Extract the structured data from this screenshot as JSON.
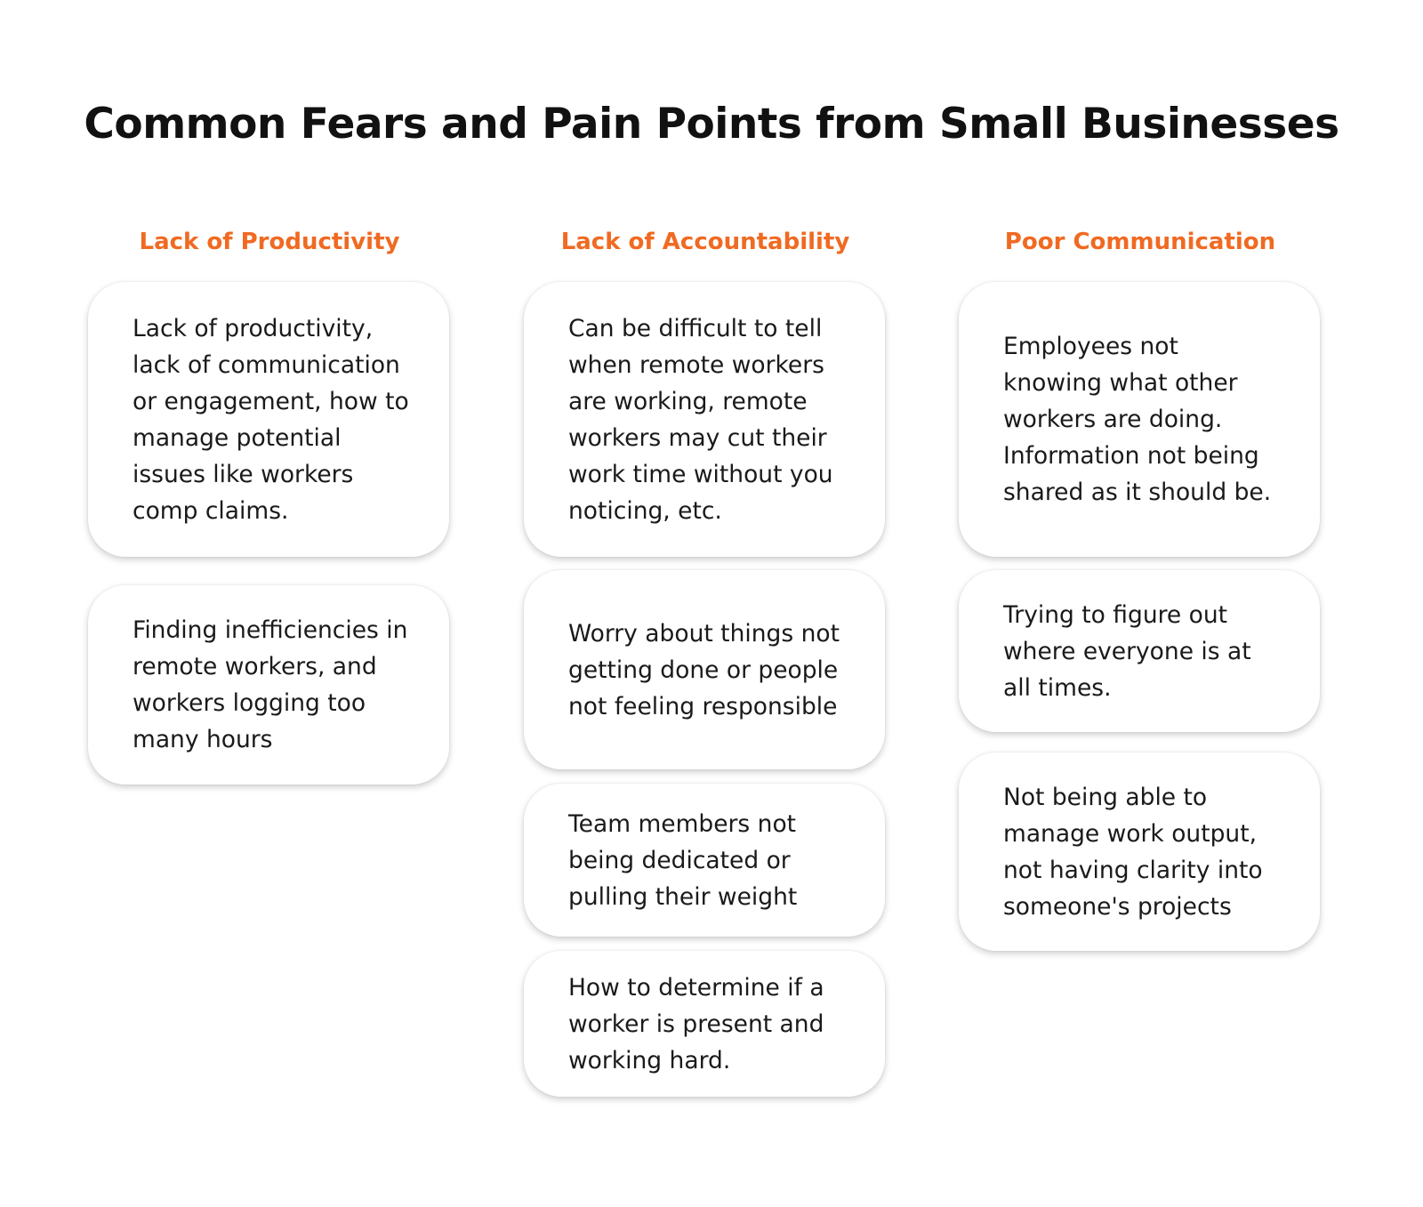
{
  "title": "Common Fears and Pain Points from Small Businesses",
  "accent_color": "#f06a22",
  "columns": [
    {
      "heading": "Lack of Productivity",
      "cards": [
        "Lack of productivity, lack of communication or engagement, how to manage potential issues like workers comp claims.",
        "Finding inefficiencies in remote workers, and workers logging too many hours"
      ]
    },
    {
      "heading": "Lack of Accountability",
      "cards": [
        "Can be difficult to tell when remote workers are working, remote workers may cut their work time without you noticing, etc.",
        "Worry about things not getting done or people not feeling responsible",
        "Team members not being dedicated or pulling their weight",
        "How to determine if a worker is present and working hard."
      ]
    },
    {
      "heading": "Poor Communication",
      "cards": [
        "Employees not knowing what other workers are doing. Information not being shared as it should be.",
        "Trying to figure out where everyone is at all times.",
        "Not being able to manage work output, not having clarity into someone's projects"
      ]
    }
  ]
}
